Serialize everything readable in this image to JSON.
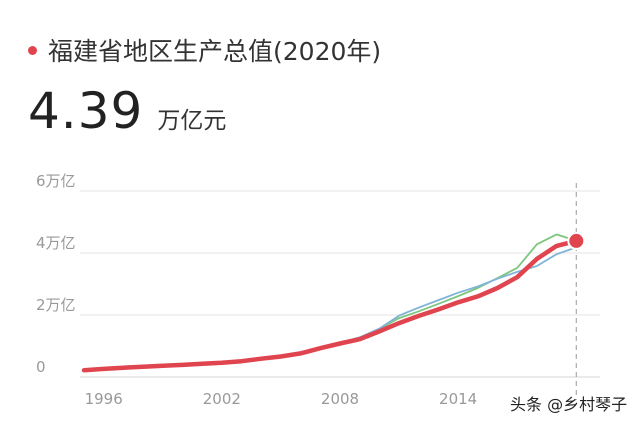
{
  "header": {
    "title": "福建省地区生产总值(2020年)",
    "value": "4.39",
    "unit": "万亿元"
  },
  "watermark": "头条 @乡村琴子",
  "colors": {
    "accent": "#e0444e",
    "series_blue": "#7fb3d8",
    "series_green": "#7dc67d",
    "grid": "#e6e6e6",
    "tick": "#999999"
  },
  "chart_data": {
    "type": "line",
    "title": "福建省地区生产总值(2020年)",
    "xlabel": "",
    "ylabel": "",
    "x": [
      1995,
      1996,
      1997,
      1998,
      1999,
      2000,
      2001,
      2002,
      2003,
      2004,
      2005,
      2006,
      2007,
      2008,
      2009,
      2010,
      2011,
      2012,
      2013,
      2014,
      2015,
      2016,
      2017,
      2018,
      2019,
      2020
    ],
    "xticks": [
      1996,
      2002,
      2008,
      2014
    ],
    "xlim": [
      1995,
      2021
    ],
    "yticks": [
      {
        "value": 0,
        "label": "0"
      },
      {
        "value": 2,
        "label": "2万亿"
      },
      {
        "value": 4,
        "label": "4万亿"
      },
      {
        "value": 6,
        "label": "6万亿"
      }
    ],
    "ylim": [
      0,
      6
    ],
    "highlight": {
      "x": 2020,
      "y": 4.39
    },
    "series": [
      {
        "color": "#7dc67d",
        "values": [
          0.22,
          0.26,
          0.3,
          0.33,
          0.36,
          0.39,
          0.43,
          0.46,
          0.51,
          0.59,
          0.66,
          0.76,
          0.93,
          1.1,
          1.26,
          1.55,
          1.9,
          2.12,
          2.36,
          2.61,
          2.87,
          3.19,
          3.52,
          4.28,
          4.6,
          4.39
        ]
      },
      {
        "color": "#7fb3d8",
        "values": [
          0.22,
          0.26,
          0.3,
          0.33,
          0.36,
          0.39,
          0.43,
          0.46,
          0.51,
          0.59,
          0.66,
          0.76,
          0.93,
          1.1,
          1.28,
          1.56,
          1.98,
          2.24,
          2.48,
          2.72,
          2.92,
          3.17,
          3.39,
          3.58,
          3.96,
          4.18
        ]
      },
      {
        "color": "#e0444e",
        "values": [
          0.22,
          0.26,
          0.3,
          0.33,
          0.36,
          0.39,
          0.43,
          0.46,
          0.51,
          0.59,
          0.66,
          0.76,
          0.93,
          1.08,
          1.22,
          1.47,
          1.74,
          1.97,
          2.18,
          2.41,
          2.6,
          2.87,
          3.22,
          3.81,
          4.23,
          4.39
        ]
      }
    ]
  }
}
